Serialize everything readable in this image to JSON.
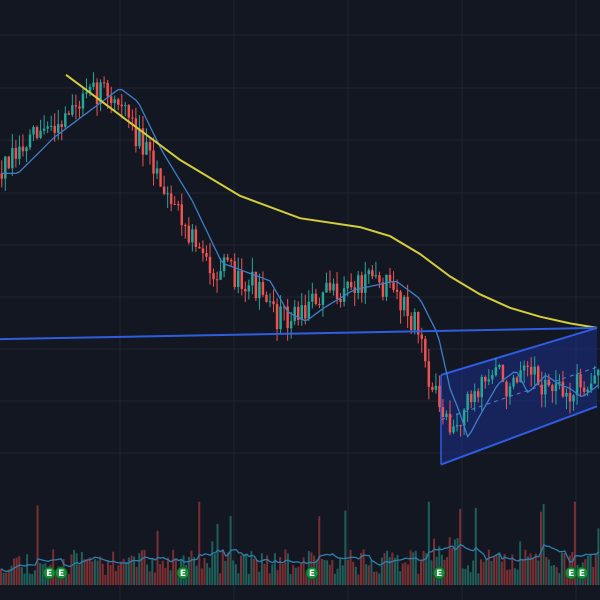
{
  "colors": {
    "background": "#131722",
    "grid": "#1f2431",
    "bull_candle": "#26a69a",
    "bear_candle": "#ef5350",
    "sma_long": "#d4cc3a",
    "sma_short": "#3d7fc9",
    "trendline": "#2f5de0",
    "channel_fill": "#1c2f8a",
    "volume_bull": "#1f5e59",
    "volume_bear": "#7a2f33",
    "volume_ma": "#2f7fae",
    "earnings_badge": "#1a8d38"
  },
  "chart_data": {
    "type": "candlestick",
    "title": "",
    "xlabel": "",
    "ylabel": "",
    "grid": true,
    "legend": "none",
    "price_range": [
      0,
      100
    ],
    "volume_range": [
      0,
      100
    ],
    "price_path": [
      [
        0,
        68
      ],
      [
        6,
        76
      ],
      [
        12,
        82
      ],
      [
        17,
        87
      ],
      [
        20,
        84
      ],
      [
        24,
        73
      ],
      [
        29,
        62
      ],
      [
        34,
        48
      ],
      [
        38,
        46
      ],
      [
        42,
        44
      ],
      [
        45,
        37
      ],
      [
        48,
        35
      ],
      [
        51,
        38
      ],
      [
        56,
        42
      ],
      [
        63,
        44
      ],
      [
        67,
        40
      ],
      [
        70,
        32
      ],
      [
        72,
        20
      ],
      [
        73.5,
        15
      ],
      [
        75,
        9
      ],
      [
        77,
        14
      ],
      [
        80,
        21
      ],
      [
        83,
        24
      ],
      [
        85,
        19
      ],
      [
        88,
        23
      ],
      [
        90,
        21
      ],
      [
        92,
        20
      ],
      [
        94,
        18
      ],
      [
        96,
        20
      ],
      [
        98,
        22
      ],
      [
        99.5,
        24
      ]
    ],
    "sma_long": {
      "name": "",
      "points": [
        [
          11,
          90
        ],
        [
          20,
          81
        ],
        [
          30,
          71
        ],
        [
          40,
          63
        ],
        [
          50,
          58
        ],
        [
          60,
          56
        ],
        [
          65,
          54
        ],
        [
          70,
          50
        ],
        [
          75,
          45
        ],
        [
          80,
          41
        ],
        [
          85,
          38
        ],
        [
          90,
          36
        ],
        [
          95,
          34.5
        ],
        [
          99.5,
          33.5
        ]
      ]
    },
    "sma_short": {
      "name": "",
      "lag": 3
    },
    "trendline": {
      "points": [
        [
          0,
          31
        ],
        [
          99.5,
          33.5
        ]
      ]
    },
    "channel": {
      "lower": [
        [
          73.5,
          3
        ],
        [
          99.5,
          16
        ]
      ],
      "upper": [
        [
          73.5,
          23
        ],
        [
          99.5,
          33.5
        ]
      ]
    },
    "volume": {
      "bars": 230,
      "seed": 11
    },
    "earnings_markers": [
      {
        "x": 8.2,
        "label": "E"
      },
      {
        "x": 10.2,
        "label": "E"
      },
      {
        "x": 30.5,
        "label": "E"
      },
      {
        "x": 52,
        "label": "E"
      },
      {
        "x": 73.2,
        "label": "E"
      },
      {
        "x": 95.2,
        "label": "E"
      },
      {
        "x": 97,
        "label": "E"
      }
    ],
    "candle_count": 170,
    "seed": 7
  }
}
